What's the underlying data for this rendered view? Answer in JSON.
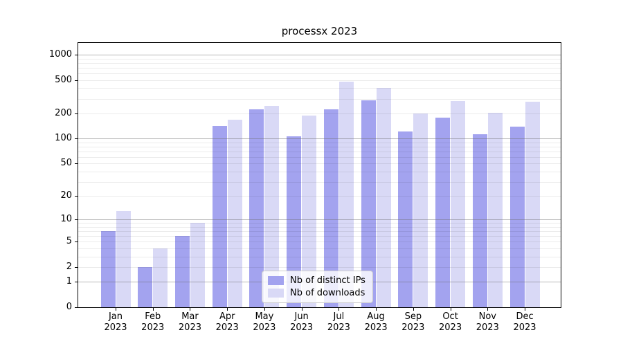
{
  "title": "processx 2023",
  "chart_data": {
    "type": "bar",
    "title": "processx 2023",
    "scale": "log1p",
    "grid": "on",
    "legend_position": "lower center (inside plot)",
    "x_year": "2023",
    "categories": [
      "Jan",
      "Feb",
      "Mar",
      "Apr",
      "May",
      "Jun",
      "Jul",
      "Aug",
      "Sep",
      "Oct",
      "Nov",
      "Dec"
    ],
    "series": [
      {
        "name": "Nb of distinct IPs",
        "color": "#a3a3ef",
        "values": [
          7,
          2,
          6,
          142,
          222,
          106,
          222,
          287,
          122,
          178,
          113,
          140
        ]
      },
      {
        "name": "Nb of downloads",
        "color": "#d9d9f6",
        "values": [
          13,
          4,
          9,
          168,
          245,
          187,
          478,
          404,
          200,
          280,
          205,
          276
        ]
      }
    ],
    "y_ticks": [
      0,
      1,
      2,
      5,
      10,
      20,
      50,
      100,
      200,
      500,
      1000
    ],
    "ylim": [
      0,
      1385
    ],
    "grid_major": [
      1,
      10,
      100,
      1000
    ],
    "grid_minor": [
      2,
      3,
      4,
      5,
      6,
      7,
      8,
      9,
      20,
      30,
      40,
      50,
      60,
      70,
      80,
      90,
      200,
      300,
      400,
      500,
      600,
      700,
      800,
      900
    ],
    "colors": {
      "bar_dark": "#a3a3ef",
      "bar_light": "#d9d9f6",
      "grid_major": "#b0b0b0",
      "grid_minor": "#e8e8e8",
      "spine": "#000000",
      "background": "#ffffff"
    }
  }
}
